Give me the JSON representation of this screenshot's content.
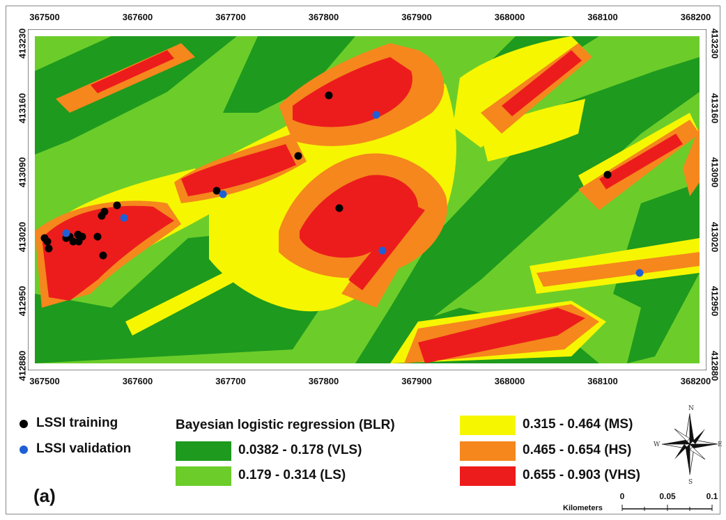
{
  "panel_label": "(a)",
  "axes": {
    "x_ticks": [
      "367500",
      "367600",
      "367700",
      "367800",
      "367900",
      "368000",
      "368100",
      "368200"
    ],
    "y_ticks": [
      "413230",
      "413160",
      "413090",
      "413020",
      "412950",
      "412880"
    ]
  },
  "points_legend": {
    "training": {
      "label": "LSSI training",
      "color": "#000000"
    },
    "validation": {
      "label": "LSSI validation",
      "color": "#1f5fd6"
    }
  },
  "legend": {
    "title": "Bayesian logistic regression (BLR)",
    "classes": [
      {
        "label": "0.0382 - 0.178 (VLS)",
        "color": "#1e9a1e"
      },
      {
        "label": "0.179 - 0.314 (LS)",
        "color": "#6ccd2a"
      },
      {
        "label": "0.315 - 0.464 (MS)",
        "color": "#f6f600"
      },
      {
        "label": "0.465 - 0.654 (HS)",
        "color": "#f5871d"
      },
      {
        "label": "0.655 - 0.903 (VHS)",
        "color": "#ec1c1c"
      }
    ]
  },
  "compass": {
    "n": "N",
    "s": "S",
    "e": "E",
    "w": "W"
  },
  "scale_bar": {
    "title": "Kilometers",
    "labels": [
      "0",
      "0.05",
      "0.1"
    ]
  }
}
